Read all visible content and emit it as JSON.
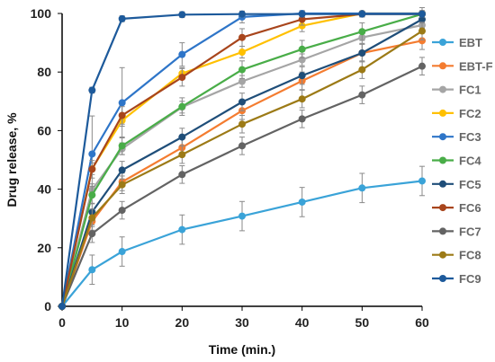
{
  "chart_data": {
    "type": "line",
    "xlabel": "Time (min.)",
    "ylabel": "Drug release, %",
    "xlim": [
      0,
      60
    ],
    "ylim": [
      0,
      100
    ],
    "x_ticks": [
      "0",
      "10",
      "20",
      "30",
      "40",
      "50",
      "60"
    ],
    "y_ticks": [
      "0",
      "20",
      "40",
      "60",
      "80",
      "100"
    ],
    "grid": false,
    "legend_position": "right",
    "x": [
      0,
      5,
      10,
      20,
      30,
      40,
      50,
      60
    ],
    "series": [
      {
        "name": "EBT",
        "color": "#3aa3d8",
        "values": [
          0,
          12.5,
          18.7,
          26.2,
          30.8,
          35.6,
          40.4,
          42.8
        ],
        "error": [
          0,
          5,
          5,
          5,
          5,
          5,
          5,
          5
        ]
      },
      {
        "name": "EBT-F",
        "color": "#f47c30",
        "values": [
          0,
          29,
          42.5,
          54.2,
          66.8,
          77,
          86.5,
          90.7
        ],
        "error": [
          0,
          3,
          3,
          3,
          3,
          3,
          3,
          3
        ]
      },
      {
        "name": "FC1",
        "color": "#a5a5a5",
        "values": [
          0,
          39.8,
          53.8,
          68,
          76.8,
          84.2,
          91.8,
          96
        ],
        "error": [
          0,
          2,
          2,
          2,
          2,
          2,
          2,
          2
        ]
      },
      {
        "name": "FC2",
        "color": "#ffc000",
        "values": [
          0,
          47,
          63.5,
          79.5,
          86.8,
          95.8,
          100,
          100
        ],
        "error": [
          0,
          2,
          2,
          2,
          2,
          2,
          0,
          0
        ]
      },
      {
        "name": "FC3",
        "color": "#2e75c8",
        "values": [
          0,
          52,
          69.5,
          86,
          98.8,
          100,
          100,
          100
        ],
        "error": [
          0,
          13,
          12,
          4,
          2,
          1,
          0,
          0
        ]
      },
      {
        "name": "FC4",
        "color": "#49ad48",
        "values": [
          0,
          38,
          54.8,
          68.2,
          80.8,
          87.8,
          93.8,
          99.8
        ],
        "error": [
          0,
          3,
          3,
          3,
          3,
          3,
          3,
          3
        ]
      },
      {
        "name": "FC5",
        "color": "#1f4e79",
        "values": [
          0,
          32.2,
          46.5,
          57.8,
          69.8,
          78.8,
          86.5,
          98
        ],
        "error": [
          0,
          3,
          3,
          3,
          3,
          3,
          3,
          3
        ]
      },
      {
        "name": "FC6",
        "color": "#a8451c",
        "values": [
          0,
          46.8,
          65.2,
          78.2,
          91.8,
          98,
          99.8,
          99.8
        ],
        "error": [
          0,
          3,
          3,
          3,
          3,
          2,
          1,
          1
        ]
      },
      {
        "name": "FC7",
        "color": "#636363",
        "values": [
          0,
          24.8,
          32.8,
          45,
          54.8,
          64,
          72.2,
          82
        ],
        "error": [
          0,
          3,
          3,
          3,
          3,
          3,
          3,
          3
        ]
      },
      {
        "name": "FC8",
        "color": "#9c7a16",
        "values": [
          0,
          30.2,
          41.5,
          51.8,
          62.2,
          70.8,
          80.8,
          94
        ],
        "error": [
          0,
          3,
          3,
          3,
          3,
          3,
          3,
          3
        ]
      },
      {
        "name": "FC9",
        "color": "#1d5a9b",
        "values": [
          0,
          73.8,
          98.2,
          99.6,
          99.8,
          99.8,
          99.8,
          99.8
        ],
        "error": [
          0,
          1,
          1,
          1,
          1,
          1,
          1,
          1
        ]
      }
    ]
  }
}
